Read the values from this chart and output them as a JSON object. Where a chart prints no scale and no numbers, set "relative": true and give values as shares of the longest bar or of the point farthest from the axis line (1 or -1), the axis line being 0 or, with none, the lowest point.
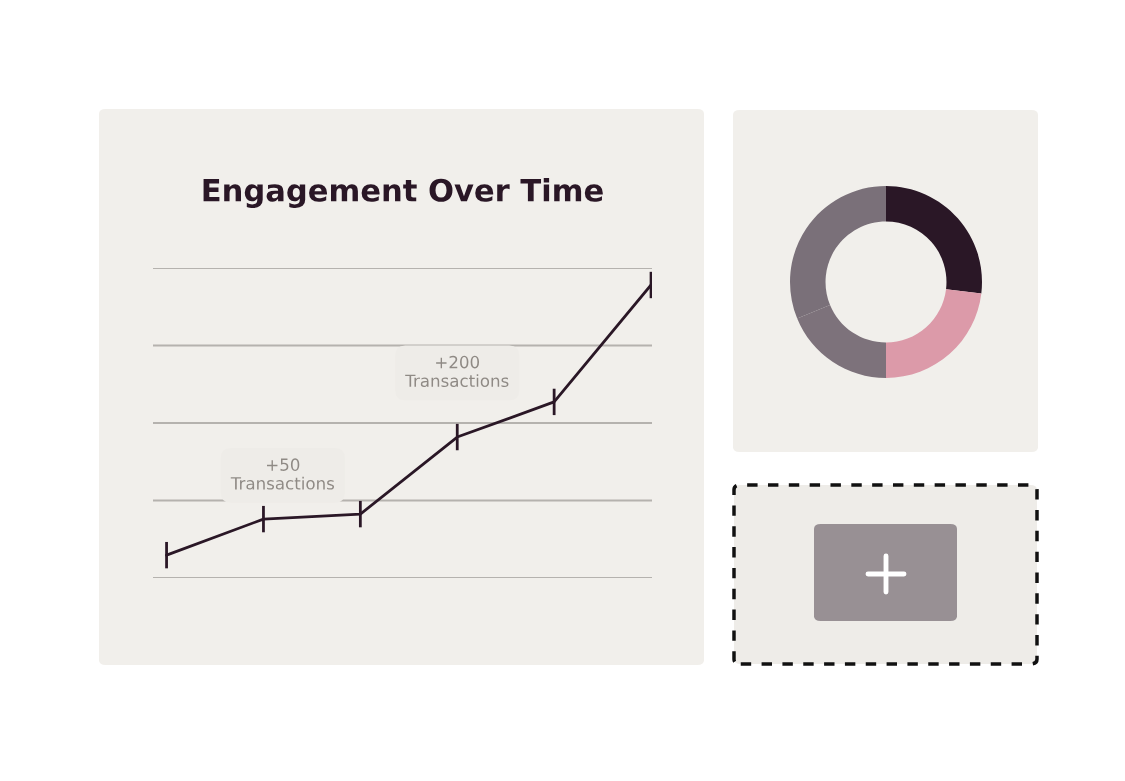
{
  "chart_data": [
    {
      "type": "line",
      "title": "Engagement Over Time",
      "relative": true,
      "grid": "y",
      "categories": [
        null,
        null,
        null,
        null,
        null,
        null
      ],
      "series": [
        {
          "color": "#2a1726",
          "values": [
            0.078,
            0.201,
            0.218,
            0.481,
            0.601,
            1
          ]
        }
      ],
      "annotations": [
        "+50\nTransactions",
        "+200\nTransactions"
      ]
    },
    {
      "type": "donut",
      "categories": [
        null,
        null,
        null,
        null
      ],
      "values": [
        26.9,
        23.1,
        18.8,
        31.2
      ],
      "colors": [
        "#2a1726",
        "#dc9aa9",
        "#7d727b",
        "#7a7079"
      ]
    }
  ]
}
